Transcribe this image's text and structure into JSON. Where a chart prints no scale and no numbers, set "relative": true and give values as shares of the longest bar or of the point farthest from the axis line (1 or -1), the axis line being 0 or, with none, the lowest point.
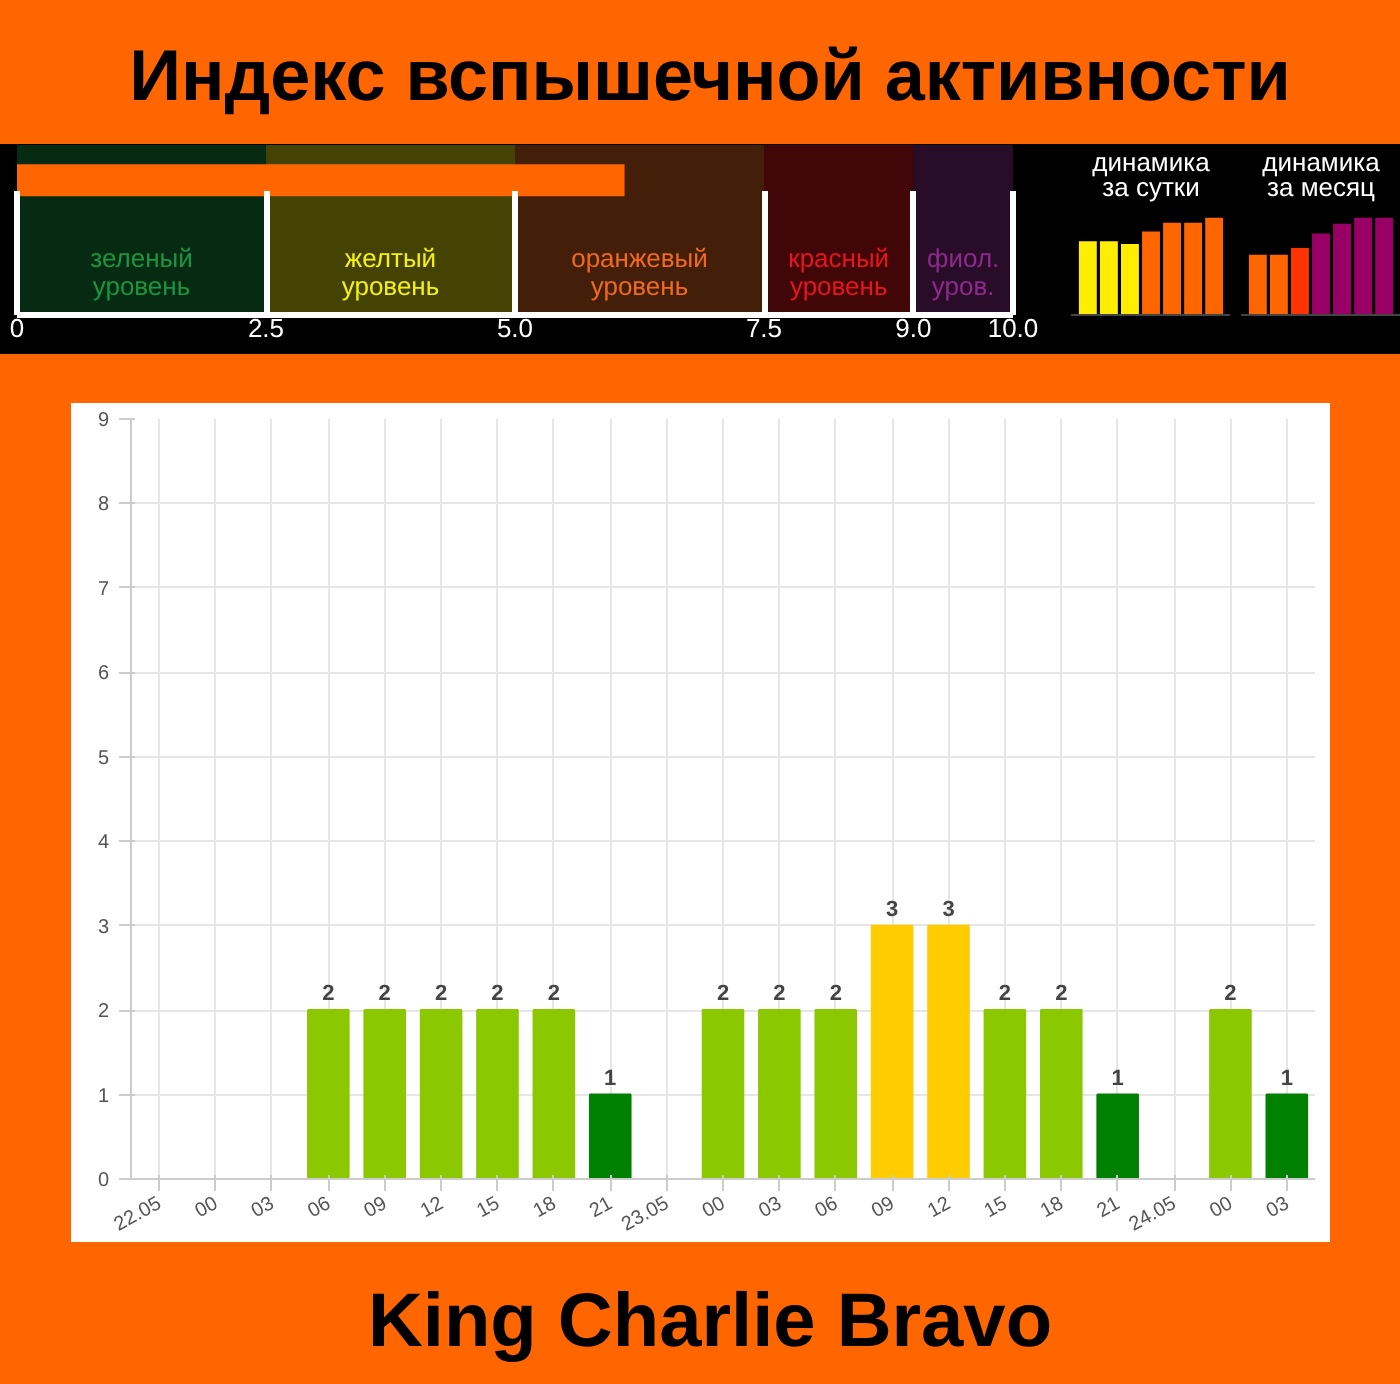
{
  "chart_data": [
    {
      "type": "bar",
      "title": "Индекс вспышечной активности",
      "orientation": "horizontal",
      "categories": [
        null
      ],
      "values": [
        6.1
      ],
      "color": "#ff6600",
      "grid": "x",
      "xlim": [
        0,
        10
      ],
      "xticks": [
        0,
        {
          "value": 2.5,
          "label": "2.5"
        },
        {
          "value": 5,
          "label": "5.0"
        },
        {
          "value": 7.5,
          "label": "7.5"
        },
        {
          "value": 9,
          "label": "9.0"
        },
        {
          "value": 10,
          "label": "10.0"
        }
      ],
      "bands": [
        {
          "axis": "x",
          "from": 0,
          "to": 2.5,
          "label": "зеленый\nуровень",
          "color": "#1a9641"
        },
        {
          "axis": "x",
          "from": 2.5,
          "to": 5,
          "label": "желтый\nуровень",
          "color": "#f5f20f"
        },
        {
          "axis": "x",
          "from": 5,
          "to": 7.5,
          "label": "оранжевый\nуровень",
          "color": "#f26a1b"
        },
        {
          "axis": "x",
          "from": 7.5,
          "to": 9,
          "label": "красный\nуровень",
          "color": "#e8141e"
        },
        {
          "axis": "x",
          "from": 9,
          "to": 10,
          "label": "фиол.\nуров.",
          "color": "#8e2a8e"
        }
      ]
    },
    {
      "type": "bar",
      "title": "динамика\nза сутки",
      "relative": true,
      "categories": [
        null,
        null,
        null,
        null,
        null,
        null,
        null
      ],
      "values": [
        0.76,
        0.76,
        0.73,
        0.86,
        0.95,
        0.95,
        1
      ],
      "colors": [
        "#ffee00",
        "#ffee00",
        "#ffee00",
        "#ff6600",
        "#ff6600",
        "#ff6600",
        "#ff6600"
      ]
    },
    {
      "type": "bar",
      "title": "динамика\nза месяц",
      "relative": true,
      "categories": [
        null,
        null,
        null,
        null,
        null,
        null,
        null
      ],
      "values": [
        0.62,
        0.62,
        0.69,
        0.84,
        0.94,
        1,
        1
      ],
      "colors": [
        "#ff6600",
        "#ff6600",
        "#ff3300",
        "#990066",
        "#990066",
        "#990066",
        "#990066"
      ]
    },
    {
      "type": "bar",
      "categories": [
        "22.05",
        "00",
        "03",
        "06",
        "09",
        "12",
        "15",
        "18",
        "21",
        "23.05",
        "00",
        "03",
        "06",
        "09",
        "12",
        "15",
        "18",
        "21",
        "24.05",
        "00",
        "03"
      ],
      "values": [
        0,
        0,
        0,
        2,
        2,
        2,
        2,
        2,
        1,
        0,
        2,
        2,
        2,
        3,
        3,
        2,
        2,
        1,
        0,
        2,
        1
      ],
      "colors": [
        "#008000",
        "#008000",
        "#008000",
        "#8cc800",
        "#8cc800",
        "#8cc800",
        "#8cc800",
        "#8cc800",
        "#008000",
        "#008000",
        "#8cc800",
        "#8cc800",
        "#8cc800",
        "#ffcc00",
        "#ffcc00",
        "#8cc800",
        "#8cc800",
        "#008000",
        "#008000",
        "#8cc800",
        "#008000"
      ],
      "value_labels": [
        null,
        null,
        null,
        "2",
        "2",
        "2",
        "2",
        "2",
        "1",
        null,
        "2",
        "2",
        "2",
        "3",
        "3",
        "2",
        "2",
        "1",
        null,
        "2",
        "1"
      ],
      "ylim": [
        0,
        9
      ],
      "yticks": [
        0,
        1,
        2,
        3,
        4,
        5,
        6,
        7,
        8,
        9
      ],
      "grid": true,
      "annotations": [
        "King Charlie Bravo"
      ]
    }
  ]
}
